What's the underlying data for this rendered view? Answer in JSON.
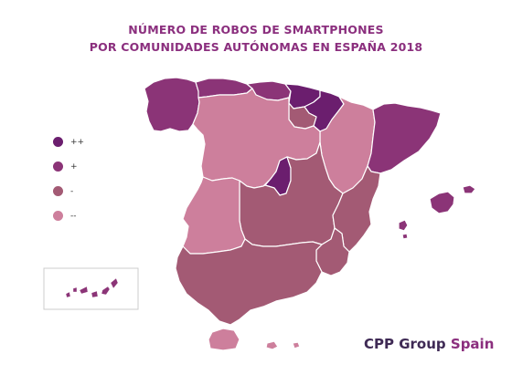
{
  "title": {
    "line1": "NÚMERO DE ROBOS DE SMARTPHONES",
    "line2": "POR COMUNIDADES AUTÓNOMAS EN ESPAÑA 2018"
  },
  "legend": [
    {
      "label": "++",
      "color": "#6b1e6e"
    },
    {
      "label": "+",
      "color": "#8b3477"
    },
    {
      "label": "-",
      "color": "#a35a74"
    },
    {
      "label": "--",
      "color": "#cd7f9c"
    }
  ],
  "brand": {
    "part1": "CPP Group",
    "part2": "Spain"
  },
  "regions": [
    {
      "name": "galicia",
      "level": "+"
    },
    {
      "name": "asturias",
      "level": "+"
    },
    {
      "name": "cantabria",
      "level": "+"
    },
    {
      "name": "pais-vasco",
      "level": "++"
    },
    {
      "name": "navarra",
      "level": "++"
    },
    {
      "name": "la-rioja",
      "level": "-"
    },
    {
      "name": "aragon",
      "level": "--"
    },
    {
      "name": "cataluna",
      "level": "+"
    },
    {
      "name": "castilla-y-leon",
      "level": "--"
    },
    {
      "name": "madrid",
      "level": "++"
    },
    {
      "name": "castilla-la-mancha",
      "level": "-"
    },
    {
      "name": "extremadura",
      "level": "--"
    },
    {
      "name": "comunidad-valenciana",
      "level": "-"
    },
    {
      "name": "murcia",
      "level": "-"
    },
    {
      "name": "andalucia",
      "level": "-"
    },
    {
      "name": "islas-baleares",
      "level": "+"
    },
    {
      "name": "islas-canarias",
      "level": "+"
    },
    {
      "name": "ceuta-melilla",
      "level": "--"
    }
  ]
}
